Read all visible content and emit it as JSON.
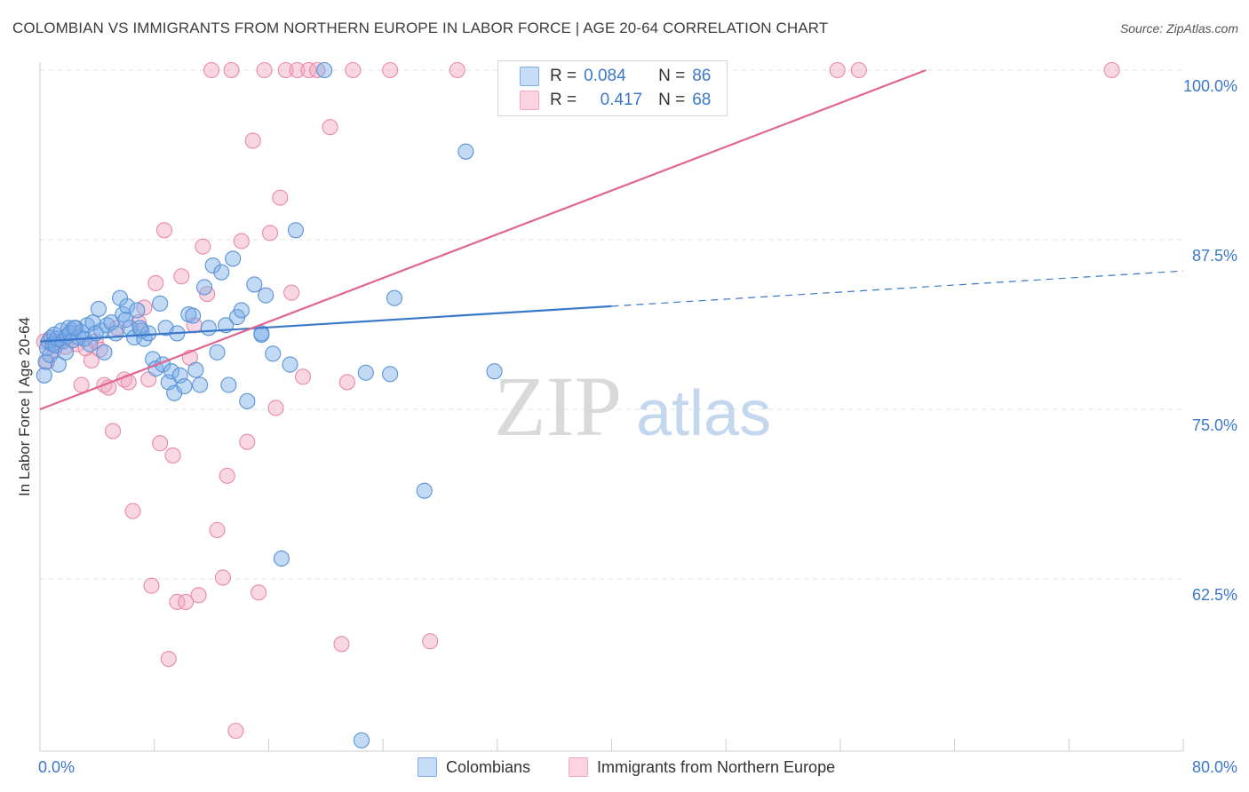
{
  "header": {
    "title": "COLOMBIAN VS IMMIGRANTS FROM NORTHERN EUROPE IN LABOR FORCE | AGE 20-64 CORRELATION CHART",
    "source": "Source: ZipAtlas.com"
  },
  "watermark": {
    "zip": "ZIP",
    "atlas": "atlas"
  },
  "legend": {
    "r_label": "R =",
    "n_label": "N =",
    "series": [
      {
        "name": "Colombians",
        "r": "0.084",
        "n": "86"
      },
      {
        "name": "Immigrants from Northern Europe",
        "r": "0.417",
        "n": "68"
      }
    ]
  },
  "chart_data": {
    "type": "scatter",
    "title": "COLOMBIAN VS IMMIGRANTS FROM NORTHERN EUROPE IN LABOR FORCE | AGE 20-64 CORRELATION CHART",
    "xlabel": "",
    "ylabel": "In Labor Force | Age 20-64",
    "xlim": [
      0,
      80
    ],
    "ylim": [
      50,
      100
    ],
    "x_tick_labels": [
      "0.0%",
      "80.0%"
    ],
    "y_ticks": [
      62.5,
      75.0,
      87.5,
      100.0
    ],
    "y_tick_labels": [
      "62.5%",
      "75.0%",
      "87.5%",
      "100.0%"
    ],
    "colors": {
      "Colombians": "#7aaee8",
      "Immigrants from Northern Europe": "#f2a7bf",
      "blue_line": "#3a78c9",
      "pink_line": "#e06594"
    },
    "series": [
      {
        "name": "Colombians",
        "points": [
          [
            0.4,
            78.5
          ],
          [
            0.5,
            79.5
          ],
          [
            0.6,
            80.0
          ],
          [
            0.7,
            79.0
          ],
          [
            0.8,
            80.3
          ],
          [
            0.9,
            79.8
          ],
          [
            1.0,
            80.5
          ],
          [
            1.1,
            79.7
          ],
          [
            1.2,
            80.2
          ],
          [
            1.3,
            78.3
          ],
          [
            1.5,
            80.8
          ],
          [
            1.6,
            80.0
          ],
          [
            1.8,
            79.2
          ],
          [
            1.9,
            80.4
          ],
          [
            2.0,
            81.0
          ],
          [
            2.1,
            80.6
          ],
          [
            2.3,
            80.1
          ],
          [
            2.5,
            81.0
          ],
          [
            2.7,
            80.3
          ],
          [
            2.9,
            80.7
          ],
          [
            3.1,
            80.2
          ],
          [
            3.3,
            81.2
          ],
          [
            3.5,
            79.8
          ],
          [
            3.7,
            81.4
          ],
          [
            3.9,
            80.6
          ],
          [
            4.1,
            82.4
          ],
          [
            4.3,
            80.8
          ],
          [
            4.5,
            79.2
          ],
          [
            4.7,
            81.2
          ],
          [
            5.0,
            81.4
          ],
          [
            5.3,
            80.6
          ],
          [
            5.6,
            83.2
          ],
          [
            5.8,
            82.0
          ],
          [
            6.1,
            82.6
          ],
          [
            6.3,
            81.0
          ],
          [
            6.6,
            80.3
          ],
          [
            6.8,
            82.3
          ],
          [
            7.1,
            80.8
          ],
          [
            7.3,
            80.2
          ],
          [
            7.6,
            80.6
          ],
          [
            7.9,
            78.7
          ],
          [
            8.1,
            78.0
          ],
          [
            8.4,
            82.8
          ],
          [
            8.6,
            78.3
          ],
          [
            8.8,
            81.0
          ],
          [
            9.0,
            77.0
          ],
          [
            9.2,
            77.8
          ],
          [
            9.4,
            76.2
          ],
          [
            9.6,
            80.6
          ],
          [
            9.8,
            77.5
          ],
          [
            10.1,
            76.7
          ],
          [
            10.4,
            82.0
          ],
          [
            10.7,
            81.9
          ],
          [
            10.9,
            77.9
          ],
          [
            11.2,
            76.8
          ],
          [
            11.5,
            84.0
          ],
          [
            11.8,
            81.0
          ],
          [
            12.1,
            85.6
          ],
          [
            12.4,
            79.2
          ],
          [
            12.7,
            85.1
          ],
          [
            13.0,
            81.2
          ],
          [
            13.2,
            76.8
          ],
          [
            13.5,
            86.1
          ],
          [
            13.8,
            81.8
          ],
          [
            14.1,
            82.3
          ],
          [
            14.5,
            75.6
          ],
          [
            15.0,
            84.2
          ],
          [
            15.5,
            80.6
          ],
          [
            15.8,
            83.4
          ],
          [
            16.3,
            79.1
          ],
          [
            16.9,
            64.0
          ],
          [
            17.5,
            78.3
          ],
          [
            17.9,
            88.2
          ],
          [
            19.9,
            100.0
          ],
          [
            22.5,
            50.6
          ],
          [
            22.8,
            77.7
          ],
          [
            24.8,
            83.2
          ],
          [
            24.5,
            77.6
          ],
          [
            26.9,
            69.0
          ],
          [
            29.8,
            94.0
          ],
          [
            31.8,
            77.8
          ],
          [
            0.3,
            77.5
          ],
          [
            2.4,
            81.0
          ],
          [
            6.0,
            81.6
          ],
          [
            7.0,
            81.0
          ],
          [
            15.5,
            80.5
          ]
        ]
      },
      {
        "name": "Immigrants from Northern Europe",
        "points": [
          [
            0.5,
            78.5
          ],
          [
            0.7,
            80.2
          ],
          [
            1.0,
            79.4
          ],
          [
            1.4,
            80.0
          ],
          [
            1.8,
            79.6
          ],
          [
            2.2,
            80.8
          ],
          [
            2.6,
            79.8
          ],
          [
            2.9,
            76.8
          ],
          [
            3.2,
            79.5
          ],
          [
            3.6,
            78.6
          ],
          [
            3.9,
            80.0
          ],
          [
            4.2,
            79.4
          ],
          [
            4.5,
            76.8
          ],
          [
            4.8,
            76.6
          ],
          [
            5.1,
            73.4
          ],
          [
            5.4,
            81.0
          ],
          [
            5.9,
            77.2
          ],
          [
            6.2,
            77.0
          ],
          [
            6.5,
            67.5
          ],
          [
            6.9,
            81.4
          ],
          [
            7.3,
            82.5
          ],
          [
            7.6,
            77.2
          ],
          [
            7.8,
            62.0
          ],
          [
            8.1,
            84.3
          ],
          [
            8.4,
            72.5
          ],
          [
            8.7,
            88.2
          ],
          [
            9.0,
            56.6
          ],
          [
            9.3,
            71.6
          ],
          [
            9.6,
            60.8
          ],
          [
            9.9,
            84.8
          ],
          [
            10.2,
            60.8
          ],
          [
            10.5,
            78.8
          ],
          [
            10.8,
            81.2
          ],
          [
            11.1,
            61.3
          ],
          [
            11.4,
            87.0
          ],
          [
            11.7,
            83.5
          ],
          [
            12.0,
            100.0
          ],
          [
            12.4,
            66.1
          ],
          [
            12.8,
            62.6
          ],
          [
            13.1,
            70.1
          ],
          [
            13.4,
            100.0
          ],
          [
            13.7,
            51.3
          ],
          [
            14.1,
            87.4
          ],
          [
            14.5,
            72.6
          ],
          [
            14.9,
            94.8
          ],
          [
            15.3,
            61.5
          ],
          [
            15.7,
            100.0
          ],
          [
            16.1,
            88.0
          ],
          [
            16.5,
            75.1
          ],
          [
            16.8,
            90.6
          ],
          [
            17.2,
            100.0
          ],
          [
            17.6,
            83.6
          ],
          [
            18.0,
            100.0
          ],
          [
            18.4,
            77.4
          ],
          [
            18.8,
            100.0
          ],
          [
            19.4,
            100.0
          ],
          [
            20.3,
            95.8
          ],
          [
            21.1,
            57.7
          ],
          [
            21.5,
            77.0
          ],
          [
            21.9,
            100.0
          ],
          [
            24.5,
            100.0
          ],
          [
            27.3,
            57.9
          ],
          [
            29.2,
            100.0
          ],
          [
            32.8,
            100.0
          ],
          [
            55.8,
            100.0
          ],
          [
            57.3,
            100.0
          ],
          [
            75.0,
            100.0
          ],
          [
            0.3,
            80.0
          ]
        ]
      }
    ],
    "trend_lines": [
      {
        "series": "Colombians",
        "solid_from": [
          0,
          80.0
        ],
        "solid_to": [
          40,
          82.6
        ],
        "dashed_to": [
          80,
          85.2
        ]
      },
      {
        "series": "Immigrants from Northern Europe",
        "from": [
          0,
          75.0
        ],
        "to": [
          62,
          100.0
        ]
      }
    ]
  }
}
